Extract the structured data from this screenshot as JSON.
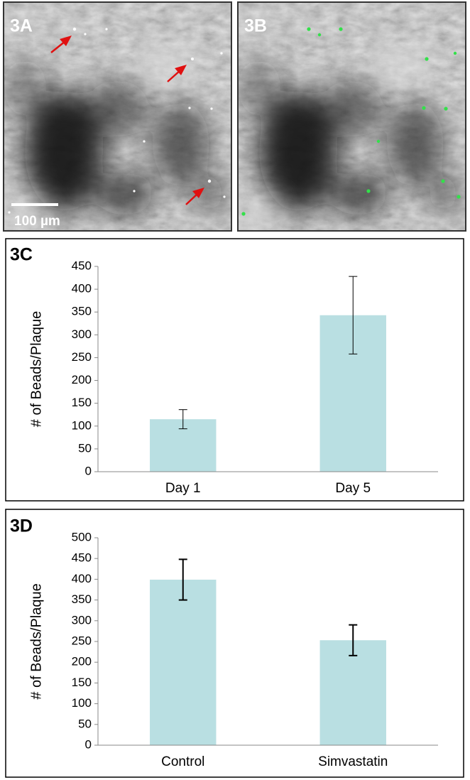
{
  "images": [
    {
      "label": "3A",
      "scale_bar": "100 µm"
    },
    {
      "label": "3B"
    }
  ],
  "chart_data": [
    {
      "type": "bar",
      "panel_label": "3C",
      "y_label": "# of Beads/Plaque",
      "categories": [
        "Day 1",
        "Day 5"
      ],
      "values": [
        115,
        343
      ],
      "errors": [
        21,
        85
      ],
      "color": "#b9dfe2",
      "ylim": [
        0,
        450
      ],
      "yticks": [
        0,
        50,
        100,
        150,
        200,
        250,
        300,
        350,
        400,
        450
      ]
    },
    {
      "type": "bar",
      "panel_label": "3D",
      "y_label": "# of Beads/Plaque",
      "categories": [
        "Control",
        "Simvastatin"
      ],
      "values": [
        399,
        253
      ],
      "errors": [
        49,
        37
      ],
      "color": "#b9dfe2",
      "ylim": [
        0,
        500
      ],
      "yticks": [
        0,
        50,
        100,
        150,
        200,
        250,
        300,
        350,
        400,
        450,
        500
      ]
    }
  ]
}
